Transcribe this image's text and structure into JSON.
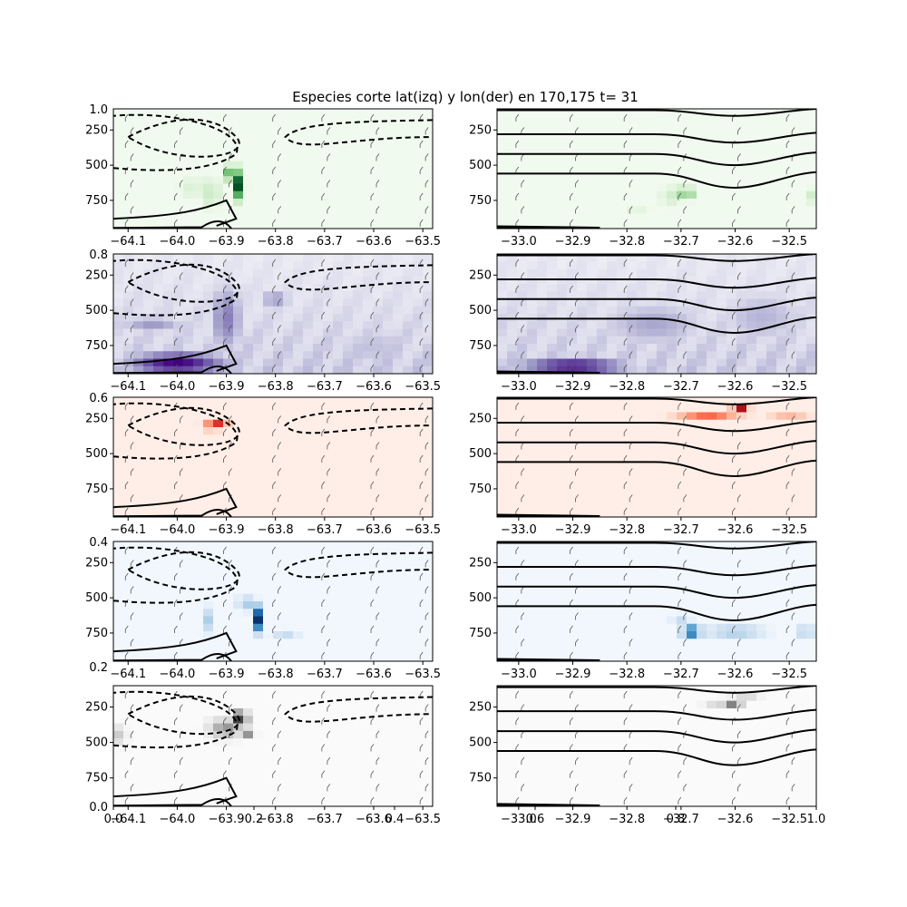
{
  "title": "Especies corte lat(izq) y lon(der) en 170,175 t= 31",
  "overlay_axis": {
    "x_ticks": [
      "0.0",
      "0.2",
      "0.4",
      "0.6",
      "0.8",
      "1.0"
    ],
    "y_ticks": [
      "0.0",
      "0.2",
      "0.4",
      "0.6",
      "0.8",
      "1.0"
    ]
  },
  "chart_data": [
    {
      "type": "heatmap",
      "panel": "row1-left",
      "colormap": "Greens",
      "accent": "#00441b",
      "xlim": [
        -64.13,
        -63.48
      ],
      "ylim": [
        950,
        100
      ],
      "x_ticks": [
        -64.1,
        -64.0,
        -63.9,
        -63.8,
        -63.7,
        -63.6,
        -63.5
      ],
      "x_tick_labels": [
        "−64.1",
        "−64.0",
        "−63.9",
        "−63.8",
        "−63.7",
        "−63.6",
        "−63.5"
      ],
      "y_ticks": [
        250,
        500,
        750
      ],
      "y_tick_labels": [
        "250",
        "500",
        "750"
      ],
      "y_corner_label": "1.0",
      "contours": "dashed-and-solid",
      "hotspots": [
        {
          "x": -63.875,
          "y": 640,
          "intensity": 1.0,
          "w": 0.012,
          "h": 110
        },
        {
          "x": -63.9,
          "y": 560,
          "intensity": 0.6,
          "w": 0.01,
          "h": 60
        },
        {
          "x": -63.93,
          "y": 700,
          "intensity": 0.25,
          "w": 0.02,
          "h": 120
        },
        {
          "x": -63.97,
          "y": 660,
          "intensity": 0.15,
          "w": 0.03,
          "h": 100
        }
      ]
    },
    {
      "type": "heatmap",
      "panel": "row1-right",
      "colormap": "Greens",
      "accent": "#00441b",
      "xlim": [
        -33.04,
        -32.45
      ],
      "ylim": [
        950,
        100
      ],
      "x_ticks": [
        -33.0,
        -32.9,
        -32.8,
        -32.7,
        -32.6,
        -32.5
      ],
      "x_tick_labels": [
        "−33.0",
        "−32.9",
        "−32.8",
        "−32.7",
        "−32.6",
        "−32.5"
      ],
      "y_ticks": [
        250,
        500,
        750
      ],
      "y_tick_labels": [
        "250",
        "500",
        "750"
      ],
      "contours": "solid",
      "hotspots": [
        {
          "x": -32.69,
          "y": 700,
          "intensity": 1.0,
          "w": 0.01,
          "h": 50
        },
        {
          "x": -32.72,
          "y": 720,
          "intensity": 0.2,
          "w": 0.02,
          "h": 80
        },
        {
          "x": -32.46,
          "y": 720,
          "intensity": 0.2,
          "w": 0.01,
          "h": 60
        },
        {
          "x": -32.78,
          "y": 820,
          "intensity": 0.1,
          "w": 0.03,
          "h": 60
        }
      ]
    },
    {
      "type": "heatmap",
      "panel": "row2-left",
      "colormap": "Purples",
      "accent": "#3f007d",
      "xlim": [
        -64.13,
        -63.48
      ],
      "ylim": [
        950,
        100
      ],
      "x_ticks": [
        -64.1,
        -64.0,
        -63.9,
        -63.8,
        -63.7,
        -63.6,
        -63.5
      ],
      "x_tick_labels": [
        "−64.1",
        "−64.0",
        "−63.9",
        "−63.8",
        "−63.7",
        "−63.6",
        "−63.5"
      ],
      "y_ticks": [
        250,
        500,
        750
      ],
      "y_tick_labels": [
        "250",
        "500",
        "750"
      ],
      "y_corner_label": "0.8",
      "contours": "dashed-and-solid",
      "background_level": 0.35,
      "hotspots": [
        {
          "x": -64.0,
          "y": 880,
          "intensity": 1.0,
          "w": 0.12,
          "h": 100
        },
        {
          "x": -63.9,
          "y": 560,
          "intensity": 0.6,
          "w": 0.04,
          "h": 300
        },
        {
          "x": -63.8,
          "y": 420,
          "intensity": 0.55,
          "w": 0.04,
          "h": 60
        },
        {
          "x": -64.05,
          "y": 600,
          "intensity": 0.5,
          "w": 0.08,
          "h": 80
        },
        {
          "x": -63.6,
          "y": 760,
          "intensity": 0.35,
          "w": 0.12,
          "h": 200
        }
      ]
    },
    {
      "type": "heatmap",
      "panel": "row2-right",
      "colormap": "Purples",
      "accent": "#3f007d",
      "xlim": [
        -33.04,
        -32.45
      ],
      "ylim": [
        950,
        100
      ],
      "x_ticks": [
        -33.0,
        -32.9,
        -32.8,
        -32.7,
        -32.6,
        -32.5
      ],
      "x_tick_labels": [
        "−33.0",
        "−32.9",
        "−32.8",
        "−32.7",
        "−32.6",
        "−32.5"
      ],
      "y_ticks": [
        250,
        500,
        750
      ],
      "y_tick_labels": [
        "250",
        "500",
        "750"
      ],
      "contours": "solid",
      "background_level": 0.35,
      "hotspots": [
        {
          "x": -32.9,
          "y": 900,
          "intensity": 0.95,
          "w": 0.12,
          "h": 80
        },
        {
          "x": -32.75,
          "y": 600,
          "intensity": 0.45,
          "w": 0.12,
          "h": 200
        },
        {
          "x": -32.55,
          "y": 550,
          "intensity": 0.4,
          "w": 0.1,
          "h": 250
        }
      ]
    },
    {
      "type": "heatmap",
      "panel": "row3-left",
      "colormap": "Reds",
      "accent": "#67000d",
      "xlim": [
        -64.13,
        -63.48
      ],
      "ylim": [
        950,
        100
      ],
      "x_ticks": [
        -64.1,
        -64.0,
        -63.9,
        -63.8,
        -63.7,
        -63.6,
        -63.5
      ],
      "x_tick_labels": [
        "−64.1",
        "−64.0",
        "−63.9",
        "−63.8",
        "−63.7",
        "−63.6",
        "−63.5"
      ],
      "y_ticks": [
        250,
        500,
        750
      ],
      "y_tick_labels": [
        "250",
        "500",
        "750"
      ],
      "y_corner_label": "0.6",
      "contours": "dashed-and-solid",
      "hotspots": [
        {
          "x": -63.91,
          "y": 290,
          "intensity": 1.0,
          "w": 0.012,
          "h": 30
        },
        {
          "x": -63.93,
          "y": 300,
          "intensity": 0.5,
          "w": 0.02,
          "h": 40
        }
      ]
    },
    {
      "type": "heatmap",
      "panel": "row3-right",
      "colormap": "Reds",
      "accent": "#67000d",
      "xlim": [
        -33.04,
        -32.45
      ],
      "ylim": [
        950,
        100
      ],
      "x_ticks": [
        -33.0,
        -32.9,
        -32.8,
        -32.7,
        -32.6,
        -32.5
      ],
      "x_tick_labels": [
        "−33.0",
        "−32.9",
        "−32.8",
        "−32.7",
        "−32.6",
        "−32.5"
      ],
      "y_ticks": [
        250,
        500,
        750
      ],
      "y_tick_labels": [
        "250",
        "500",
        "750"
      ],
      "contours": "solid",
      "hotspots": [
        {
          "x": -32.59,
          "y": 170,
          "intensity": 1.0,
          "w": 0.015,
          "h": 25
        },
        {
          "x": -32.65,
          "y": 220,
          "intensity": 0.7,
          "w": 0.06,
          "h": 25
        },
        {
          "x": -32.5,
          "y": 220,
          "intensity": 0.35,
          "w": 0.04,
          "h": 25
        }
      ]
    },
    {
      "type": "heatmap",
      "panel": "row4-left",
      "colormap": "Blues",
      "accent": "#08306b",
      "xlim": [
        -64.13,
        -63.48
      ],
      "ylim": [
        950,
        100
      ],
      "x_ticks": [
        -64.1,
        -64.0,
        -63.9,
        -63.8,
        -63.7,
        -63.6,
        -63.5
      ],
      "x_tick_labels": [
        "−64.1",
        "−64.0",
        "−63.9",
        "−63.8",
        "−63.7",
        "−63.6",
        "−63.5"
      ],
      "y_ticks": [
        250,
        500,
        750
      ],
      "y_tick_labels": [
        "250",
        "500",
        "750"
      ],
      "y_corner_label": "0.4",
      "contours": "dashed-and-solid",
      "hotspots": [
        {
          "x": -63.835,
          "y": 650,
          "intensity": 1.0,
          "w": 0.01,
          "h": 100
        },
        {
          "x": -63.93,
          "y": 660,
          "intensity": 0.8,
          "w": 0.008,
          "h": 100
        },
        {
          "x": -63.86,
          "y": 540,
          "intensity": 0.35,
          "w": 0.02,
          "h": 60
        },
        {
          "x": -63.78,
          "y": 760,
          "intensity": 0.25,
          "w": 0.03,
          "h": 40
        }
      ]
    },
    {
      "type": "heatmap",
      "panel": "row4-right",
      "colormap": "Blues",
      "accent": "#08306b",
      "xlim": [
        -33.04,
        -32.45
      ],
      "ylim": [
        950,
        100
      ],
      "x_ticks": [
        -33.0,
        -32.9,
        -32.8,
        -32.7,
        -32.6,
        -32.5
      ],
      "x_tick_labels": [
        "−33.0",
        "−32.9",
        "−32.8",
        "−32.7",
        "−32.6",
        "−32.5"
      ],
      "y_ticks": [
        250,
        500,
        750
      ],
      "y_tick_labels": [
        "250",
        "500",
        "750"
      ],
      "contours": "solid",
      "hotspots": [
        {
          "x": -32.68,
          "y": 740,
          "intensity": 1.0,
          "w": 0.02,
          "h": 40
        },
        {
          "x": -32.6,
          "y": 740,
          "intensity": 0.45,
          "w": 0.06,
          "h": 40
        },
        {
          "x": -32.47,
          "y": 740,
          "intensity": 0.4,
          "w": 0.02,
          "h": 40
        },
        {
          "x": -32.7,
          "y": 650,
          "intensity": 0.25,
          "w": 0.02,
          "h": 40
        }
      ]
    },
    {
      "type": "heatmap",
      "panel": "row5-left",
      "colormap": "Greys",
      "accent": "#000000",
      "xlim": [
        -64.13,
        -63.48
      ],
      "ylim": [
        950,
        100
      ],
      "x_ticks": [
        -64.1,
        -64.0,
        -63.9,
        -63.8,
        -63.7,
        -63.6,
        -63.5
      ],
      "x_tick_labels": [
        "−64.1",
        "−64.0",
        "−63.9",
        "−63.8",
        "−63.7",
        "−63.6",
        "−63.5"
      ],
      "y_ticks": [
        250,
        500,
        750
      ],
      "y_tick_labels": [
        "250",
        "500",
        "750"
      ],
      "contours": "dashed-and-solid",
      "hotspots": [
        {
          "x": -63.87,
          "y": 330,
          "intensity": 1.0,
          "w": 0.015,
          "h": 60
        },
        {
          "x": -63.85,
          "y": 430,
          "intensity": 0.9,
          "w": 0.01,
          "h": 40
        },
        {
          "x": -63.9,
          "y": 400,
          "intensity": 0.5,
          "w": 0.04,
          "h": 80
        },
        {
          "x": -64.12,
          "y": 450,
          "intensity": 0.3,
          "w": 0.02,
          "h": 80
        }
      ]
    },
    {
      "type": "heatmap",
      "panel": "row5-right",
      "colormap": "Greys",
      "accent": "#000000",
      "xlim": [
        -33.04,
        -32.45
      ],
      "ylim": [
        950,
        100
      ],
      "x_ticks": [
        -33.0,
        -32.9,
        -32.8,
        -32.7,
        -32.6,
        -32.5
      ],
      "x_tick_labels": [
        "−33.0",
        "−32.9",
        "−32.8",
        "−32.7",
        "−32.6",
        "−32.5"
      ],
      "y_ticks": [
        250,
        500,
        750
      ],
      "y_tick_labels": [
        "250",
        "500",
        "750"
      ],
      "contours": "solid",
      "hotspots": [
        {
          "x": -32.6,
          "y": 225,
          "intensity": 1.0,
          "w": 0.012,
          "h": 20
        },
        {
          "x": -32.63,
          "y": 215,
          "intensity": 0.5,
          "w": 0.03,
          "h": 25
        },
        {
          "x": -32.58,
          "y": 190,
          "intensity": 0.3,
          "w": 0.03,
          "h": 25
        }
      ]
    }
  ]
}
